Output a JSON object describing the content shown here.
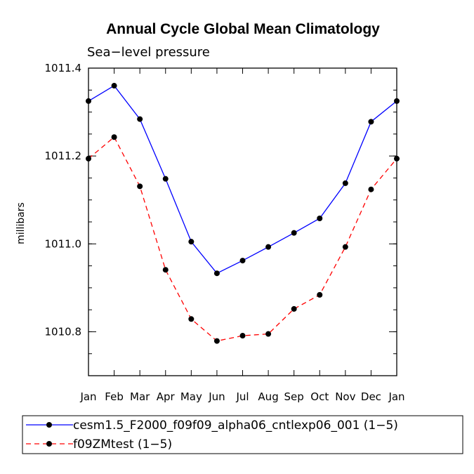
{
  "chart_data": {
    "type": "line",
    "title": "Annual Cycle Global Mean Climatology",
    "subtitle": "Sea−level pressure",
    "xlabel": "",
    "ylabel": "millibars",
    "categories": [
      "Jan",
      "Feb",
      "Mar",
      "Apr",
      "May",
      "Jun",
      "Jul",
      "Aug",
      "Sep",
      "Oct",
      "Nov",
      "Dec",
      "Jan"
    ],
    "ylim": [
      1010.7,
      1011.4
    ],
    "yticks": [
      1010.8,
      1011.0,
      1011.2,
      1011.4
    ],
    "ytick_labels": [
      "1010.8",
      "1011.0",
      "1011.2",
      "1011.4"
    ],
    "grid": false,
    "legend_position": "bottom",
    "series": [
      {
        "name": "cesm1.5_F2000_f09f09_alpha06_cntlexp06_001 (1−5)",
        "color": "#0000ff",
        "line_style": "solid",
        "values": [
          1011.325,
          1011.36,
          1011.284,
          1011.148,
          1011.005,
          1010.933,
          1010.962,
          1010.993,
          1011.025,
          1011.058,
          1011.138,
          1011.278,
          1011.325
        ]
      },
      {
        "name": "f09ZMtest (1−5)",
        "color": "#ff0000",
        "line_style": "dashed",
        "values": [
          1011.194,
          1011.243,
          1011.131,
          1010.941,
          1010.829,
          1010.779,
          1010.791,
          1010.795,
          1010.852,
          1010.884,
          1010.993,
          1011.124,
          1011.194
        ]
      }
    ]
  }
}
